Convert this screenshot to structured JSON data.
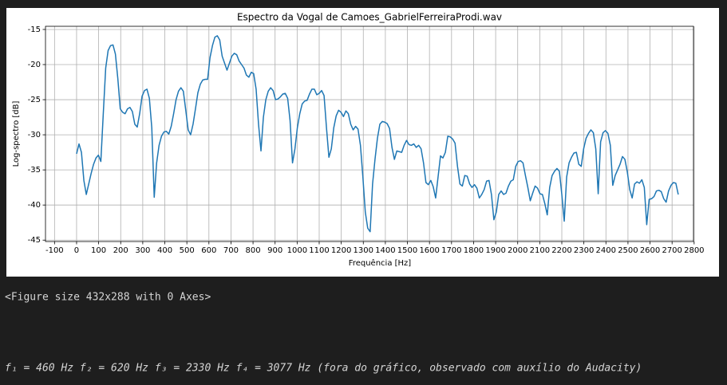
{
  "chart_data": {
    "type": "line",
    "title": "Espectro da Vogal de Camoes_GabrielFerreiraProdi.wav",
    "x_label": "Frequência [Hz]",
    "y_label": "Log-spectro [dB]",
    "color": "#1f77b4",
    "grid": true,
    "xlim": [
      -141,
      2797
    ],
    "ylim": [
      -45.2,
      -14.55
    ],
    "xticks": [
      -100,
      0,
      100,
      200,
      300,
      400,
      500,
      600,
      700,
      800,
      900,
      1000,
      1100,
      1200,
      1300,
      1400,
      1500,
      1600,
      1700,
      1800,
      1900,
      2000,
      2100,
      2200,
      2300,
      2400,
      2500,
      2600,
      2700,
      2800
    ],
    "yticks": [
      -45,
      -40,
      -35,
      -30,
      -25,
      -20,
      -15
    ],
    "x": [
      0,
      11,
      22,
      33,
      44,
      55,
      66,
      77,
      88,
      99,
      110,
      121,
      132,
      143,
      154,
      165,
      176,
      187,
      198,
      209,
      220,
      231,
      242,
      253,
      264,
      275,
      286,
      297,
      308,
      319,
      330,
      341,
      352,
      363,
      374,
      385,
      396,
      407,
      418,
      429,
      440,
      451,
      462,
      473,
      484,
      495,
      506,
      517,
      528,
      539,
      550,
      561,
      572,
      583,
      594,
      605,
      616,
      627,
      638,
      649,
      660,
      671,
      682,
      693,
      704,
      715,
      726,
      737,
      748,
      759,
      770,
      781,
      792,
      803,
      814,
      825,
      836,
      847,
      858,
      869,
      880,
      891,
      902,
      913,
      924,
      935,
      946,
      957,
      968,
      979,
      990,
      1001,
      1012,
      1023,
      1034,
      1045,
      1056,
      1067,
      1078,
      1089,
      1100,
      1111,
      1122,
      1133,
      1144,
      1155,
      1166,
      1177,
      1188,
      1199,
      1210,
      1221,
      1232,
      1243,
      1254,
      1265,
      1276,
      1287,
      1298,
      1309,
      1320,
      1331,
      1342,
      1353,
      1364,
      1375,
      1386,
      1397,
      1408,
      1419,
      1430,
      1441,
      1452,
      1463,
      1474,
      1485,
      1496,
      1507,
      1518,
      1529,
      1540,
      1551,
      1562,
      1573,
      1584,
      1595,
      1606,
      1617,
      1628,
      1639,
      1650,
      1661,
      1672,
      1683,
      1694,
      1705,
      1716,
      1727,
      1738,
      1749,
      1760,
      1771,
      1782,
      1793,
      1804,
      1815,
      1826,
      1837,
      1848,
      1859,
      1870,
      1881,
      1892,
      1903,
      1914,
      1925,
      1936,
      1947,
      1958,
      1969,
      1980,
      1991,
      2002,
      2013,
      2024,
      2035,
      2046,
      2057,
      2068,
      2079,
      2090,
      2101,
      2112,
      2123,
      2134,
      2145,
      2156,
      2167,
      2178,
      2189,
      2200,
      2211,
      2222,
      2233,
      2244,
      2255,
      2266,
      2277,
      2288,
      2299,
      2310,
      2321,
      2332,
      2343,
      2354,
      2365,
      2376,
      2387,
      2398,
      2409,
      2420,
      2431,
      2442,
      2453,
      2464,
      2475,
      2486,
      2497,
      2508,
      2519,
      2530,
      2541,
      2552,
      2563,
      2574,
      2585,
      2596,
      2607,
      2618,
      2629,
      2640,
      2651,
      2662,
      2673,
      2684,
      2695,
      2706,
      2717,
      2728
    ],
    "values": [
      -32.7,
      -31.3,
      -32.5,
      -36.5,
      -38.5,
      -37,
      -35.5,
      -34.2,
      -33.3,
      -32.9,
      -33.8,
      -27,
      -20.5,
      -18,
      -17.3,
      -17.2,
      -18.5,
      -22,
      -26.3,
      -26.8,
      -27,
      -26.3,
      -26.1,
      -26.7,
      -28.5,
      -28.9,
      -27,
      -24.5,
      -23.7,
      -23.5,
      -24.8,
      -29,
      -38.9,
      -34,
      -31.5,
      -30.2,
      -29.6,
      -29.5,
      -29.9,
      -28.8,
      -27,
      -25,
      -23.8,
      -23.3,
      -23.8,
      -26.5,
      -29.3,
      -30,
      -28.5,
      -26.3,
      -24,
      -22.8,
      -22.2,
      -22.1,
      -22.1,
      -19,
      -17.3,
      -16.1,
      -15.9,
      -16.5,
      -18.8,
      -19.8,
      -20.8,
      -19.8,
      -18.8,
      -18.4,
      -18.6,
      -19.5,
      -20,
      -20.5,
      -21.5,
      -21.8,
      -21.1,
      -21.3,
      -23.5,
      -28.5,
      -32.3,
      -27.5,
      -25,
      -23.8,
      -23.3,
      -23.7,
      -25,
      -24.9,
      -24.6,
      -24.2,
      -24.1,
      -24.8,
      -28,
      -34,
      -32,
      -29,
      -27,
      -25.6,
      -25.2,
      -25.1,
      -24.2,
      -23.5,
      -23.5,
      -24.3,
      -24.1,
      -23.7,
      -24.4,
      -29,
      -33.2,
      -32,
      -29,
      -27.3,
      -26.5,
      -26.8,
      -27.4,
      -26.6,
      -27,
      -28.5,
      -29.3,
      -28.8,
      -29.2,
      -31.5,
      -36,
      -41,
      -43.3,
      -43.8,
      -37,
      -33.5,
      -30.5,
      -28.5,
      -28.1,
      -28.2,
      -28.4,
      -29.1,
      -31.8,
      -33.5,
      -32.3,
      -32.4,
      -32.5,
      -31.5,
      -30.8,
      -31.4,
      -31.5,
      -31.3,
      -31.8,
      -31.5,
      -32,
      -34,
      -36.8,
      -37.1,
      -36.5,
      -37.4,
      -39,
      -36,
      -33,
      -33.3,
      -32.5,
      -30.2,
      -30.3,
      -30.6,
      -31.2,
      -34.5,
      -37,
      -37.3,
      -35.8,
      -35.9,
      -37,
      -37.5,
      -37.1,
      -37.6,
      -39,
      -38.5,
      -37.8,
      -36.6,
      -36.5,
      -38.5,
      -42.1,
      -41,
      -38.5,
      -38,
      -38.5,
      -38.3,
      -37.3,
      -36.6,
      -36.4,
      -34.5,
      -33.8,
      -33.7,
      -34,
      -35.8,
      -37.5,
      -39.4,
      -38.3,
      -37.3,
      -37.6,
      -38.4,
      -38.5,
      -39.8,
      -41.4,
      -37.5,
      -35.8,
      -35.2,
      -34.8,
      -35.2,
      -38.5,
      -42.3,
      -36,
      -34,
      -33.2,
      -32.6,
      -32.5,
      -34.2,
      -34.5,
      -32,
      -30.5,
      -29.8,
      -29.3,
      -29.7,
      -32,
      -38.4,
      -31,
      -29.7,
      -29.4,
      -29.8,
      -31.5,
      -37.2,
      -35.8,
      -35,
      -34.2,
      -33.1,
      -33.5,
      -35.3,
      -37.8,
      -39,
      -37,
      -36.7,
      -36.9,
      -36.4,
      -37.5,
      -42.8,
      -39.2,
      -39.1,
      -38.8,
      -38,
      -37.9,
      -38.1,
      -39.1,
      -39.6,
      -38,
      -37.2,
      -36.8,
      -36.9,
      -38.5
    ]
  },
  "outputs": {
    "figure_repr": "<Figure size 432x288 with 0 Axes>",
    "formants": "f₁ = 460 Hz f₂ = 620 Hz f₃ = 2330 Hz f₄ = 3077 Hz (fora do gráfico, observado com auxílio do Audacity)"
  }
}
